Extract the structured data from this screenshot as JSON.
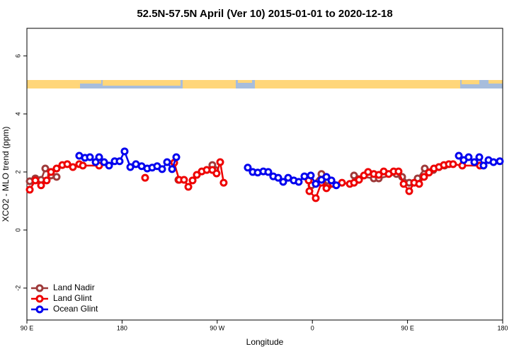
{
  "chart_data": {
    "type": "line",
    "title": "52.5N-57.5N April (Ver 10)   2015-01-01 to 2020-12-18",
    "x_label": "Longitude",
    "y_label": "XCO2 - MLO trend (ppm)",
    "xlim": [
      90,
      540
    ],
    "ylim": [
      -3.1,
      6.95
    ],
    "xticks": [
      {
        "value": 90,
        "label": "90 E"
      },
      180,
      {
        "value": 270,
        "label": "90 W"
      },
      {
        "value": 360,
        "label": "0"
      },
      {
        "value": 450,
        "label": "90 E"
      },
      {
        "value": 540,
        "label": "180"
      }
    ],
    "yticks": [
      6,
      4,
      2,
      0,
      -2
    ],
    "legend": "bottom-left",
    "series": [
      {
        "name": "Land Nadir",
        "color": "#9e3a3a",
        "x": [
          92.7,
          98,
          103.4,
          107.4,
          112.8,
          118.1,
          null,
          233.3,
          null,
          265.4,
          268.1,
          null,
          359.2,
          368.6,
          374.6,
          null,
          399.4,
          418.1,
          422.8,
          439.5,
          444.9,
          451.6,
          459.6,
          466.3,
          474.4,
          479.7,
          485.1
        ],
        "values": [
          1.68,
          1.78,
          1.73,
          2.12,
          1.88,
          1.83,
          null,
          1.73,
          null,
          2.24,
          2.07,
          null,
          1.54,
          1.93,
          1.51,
          null,
          1.88,
          1.78,
          1.78,
          1.93,
          1.83,
          1.63,
          1.78,
          2.12,
          2.07,
          2.17,
          2.22
        ]
      },
      {
        "name": "Land Glint",
        "color": "#ee0000",
        "x": [
          92.7,
          98,
          103.4,
          108.7,
          112.8,
          118.1,
          123.5,
          128.2,
          133.5,
          139.5,
          142.9,
          158.3,
          null,
          201.8,
          null,
          229.3,
          234,
          238.6,
          242.7,
          246.7,
          250.7,
          255.4,
          260.1,
          265.4,
          269.4,
          272.8,
          276.1,
          null,
          356.5,
          357.2,
          363.2,
          368.6,
          373.3,
          379.3,
          388,
          395.4,
          399.4,
          404.1,
          408.8,
          412.7,
          418.1,
          422.8,
          427.5,
          432.2,
          436.9,
          441.5,
          446.3,
          451.6,
          456.3,
          461,
          465.6,
          470.3,
          475,
          479.7,
          484.4,
          489.1,
          493.1,
          501.8,
          518.5
        ],
        "values": [
          1.39,
          1.71,
          1.54,
          1.71,
          2.0,
          2.12,
          2.24,
          2.27,
          2.17,
          2.27,
          2.22,
          2.22,
          null,
          1.8,
          null,
          2.32,
          1.73,
          1.73,
          1.49,
          1.71,
          1.9,
          2.02,
          2.07,
          2.07,
          1.95,
          2.34,
          1.63,
          null,
          1.71,
          1.34,
          1.1,
          1.63,
          1.44,
          1.59,
          1.63,
          1.59,
          1.63,
          1.73,
          1.88,
          2.0,
          1.93,
          1.9,
          2.02,
          1.93,
          2.02,
          2.02,
          1.59,
          1.34,
          1.63,
          1.59,
          1.83,
          1.98,
          2.12,
          2.17,
          2.24,
          2.27,
          2.27,
          2.22,
          2.22
        ]
      },
      {
        "name": "Ocean Glint",
        "color": "#0000ee",
        "x": [
          139.5,
          144.9,
          149.6,
          155,
          158.3,
          163,
          167.7,
          173,
          177.7,
          182.4,
          187.8,
          193.1,
          198.5,
          203.8,
          208.5,
          213.2,
          217.9,
          222.6,
          227.3,
          231.3,
          null,
          298.9,
          303.6,
          308.3,
          313.6,
          318.3,
          323,
          327.7,
          332.4,
          337.1,
          342.4,
          347.1,
          352.5,
          358.5,
          363.2,
          368.6,
          373.3,
          378,
          382.6,
          null,
          498.5,
          503.1,
          507.8,
          513.2,
          517.9,
          521.9,
          526.6,
          531.3,
          537.3
        ],
        "values": [
          2.56,
          2.49,
          2.51,
          2.34,
          2.51,
          2.34,
          2.22,
          2.37,
          2.37,
          2.71,
          2.17,
          2.27,
          2.2,
          2.12,
          2.15,
          2.2,
          2.1,
          2.34,
          2.1,
          2.51,
          null,
          2.15,
          2.0,
          1.98,
          2.02,
          2.0,
          1.85,
          1.8,
          1.66,
          1.8,
          1.71,
          1.66,
          1.85,
          1.88,
          1.59,
          1.73,
          1.83,
          1.71,
          1.54,
          null,
          2.56,
          2.41,
          2.51,
          2.34,
          2.51,
          2.22,
          2.41,
          2.34,
          2.37
        ]
      }
    ]
  }
}
